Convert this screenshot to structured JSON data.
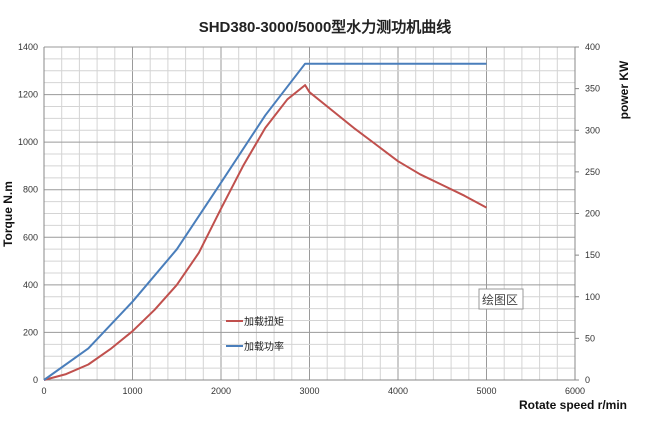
{
  "chart_data": {
    "type": "line",
    "title": "SHD380-3000/5000型水力测功机曲线",
    "xlabel": "Rotate speed r/min",
    "ylabel": "Torque N.m",
    "y2label": "power KW",
    "xlim": [
      0,
      6000
    ],
    "ylim": [
      0,
      1400
    ],
    "y2lim": [
      0,
      400
    ],
    "xticks": [
      "0",
      "1000",
      "2000",
      "3000",
      "4000",
      "5000",
      "6000"
    ],
    "yticks": [
      "0",
      "200",
      "400",
      "600",
      "800",
      "1000",
      "1200",
      "1400"
    ],
    "y2ticks": [
      "0",
      "50",
      "100",
      "150",
      "200",
      "250",
      "300",
      "350",
      "400"
    ],
    "grid": true,
    "plot_area_label": "绘图区",
    "series": [
      {
        "name": "加载扭矩",
        "axis": "left",
        "color": "#c0504d",
        "x": [
          0,
          250,
          500,
          750,
          1000,
          1250,
          1500,
          1750,
          2000,
          2250,
          2500,
          2750,
          2950,
          3000,
          3250,
          3500,
          3750,
          4000,
          4250,
          4500,
          4750,
          5000
        ],
        "y": [
          0,
          25,
          65,
          130,
          205,
          295,
          400,
          535,
          720,
          900,
          1060,
          1180,
          1240,
          1210,
          1135,
          1060,
          990,
          920,
          865,
          820,
          775,
          725
        ]
      },
      {
        "name": "加载功率",
        "axis": "right",
        "color": "#4a7ebb",
        "x": [
          0,
          500,
          1000,
          1500,
          2000,
          2500,
          2950,
          3500,
          4000,
          4500,
          5000
        ],
        "y": [
          0,
          38,
          94,
          157,
          237,
          318,
          380,
          380,
          380,
          380,
          380
        ]
      }
    ],
    "legend": "center-left"
  }
}
